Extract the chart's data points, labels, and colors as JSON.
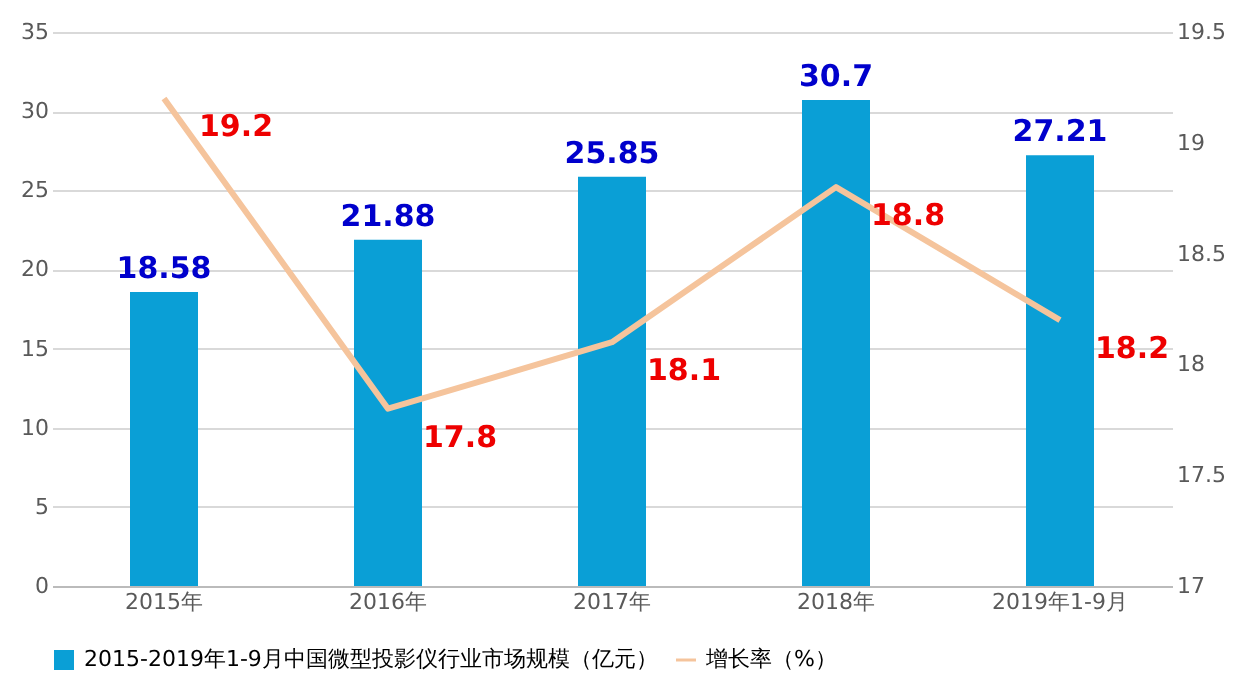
{
  "chart_data": {
    "type": "bar",
    "categories": [
      "2015年",
      "2016年",
      "2017年",
      "2018年",
      "2019年1-9月"
    ],
    "series": [
      {
        "name": "2015-2019年1-9月中国微型投影仪行业市场规模（亿元）",
        "color": "#0a9fd6",
        "values": [
          18.58,
          21.88,
          25.85,
          30.7,
          27.21
        ]
      },
      {
        "name": "增长率（%）",
        "type": "line",
        "axis": "y2",
        "color": "#f5c49c",
        "values": [
          19.2,
          17.8,
          18.1,
          18.8,
          18.2
        ]
      }
    ],
    "ylim": [
      0,
      35
    ],
    "yticks": [
      0,
      5,
      10,
      15,
      20,
      25,
      30,
      35
    ],
    "y2lim": [
      17,
      19.5
    ],
    "y2ticks": [
      17,
      17.5,
      18,
      18.5,
      19,
      19.5
    ],
    "grid": "y",
    "legend": "bottom",
    "data_labels": true,
    "marker": "none"
  }
}
